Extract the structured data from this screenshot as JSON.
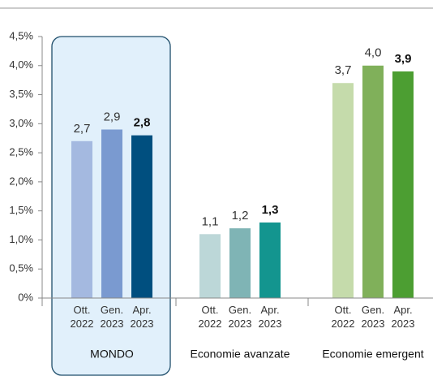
{
  "chart_data": {
    "type": "bar",
    "categories": [
      "MONDO",
      "Economie avanzate",
      "Economie emergent"
    ],
    "series": [
      {
        "name": "Ott. 2022",
        "colors": [
          "#a4b9e0",
          "#bcd7d8",
          "#c5dbab"
        ],
        "values": [
          2.7,
          1.1,
          3.7
        ],
        "value_labels": [
          "2,7",
          "1,1",
          "3,7"
        ]
      },
      {
        "name": "Gen. 2023",
        "colors": [
          "#7a9ad0",
          "#7fb4b5",
          "#80b05a"
        ],
        "values": [
          2.9,
          1.2,
          4.0
        ],
        "value_labels": [
          "2,9",
          "1,2",
          "4,0"
        ]
      },
      {
        "name": "Apr. 2023",
        "colors": [
          "#004f7f",
          "#13958f",
          "#4c9e32"
        ],
        "values": [
          2.8,
          1.3,
          3.9
        ],
        "value_labels": [
          "2,8",
          "1,3",
          "3,9"
        ]
      }
    ],
    "ylim": [
      0,
      4.5
    ],
    "yticks": [
      {
        "value": 0,
        "label": "0%"
      },
      {
        "value": 0.5,
        "label": "0,5%"
      },
      {
        "value": 1,
        "label": "1,0%"
      },
      {
        "value": 1.5,
        "label": "1,5%"
      },
      {
        "value": 2,
        "label": "2,0%"
      },
      {
        "value": 2.5,
        "label": "2,5%"
      },
      {
        "value": 3,
        "label": "3,0%"
      },
      {
        "value": 3.5,
        "label": "3,5%"
      },
      {
        "value": 4,
        "label": "4,0%"
      },
      {
        "value": 4.5,
        "label": "4,5%"
      }
    ],
    "grid": false
  }
}
